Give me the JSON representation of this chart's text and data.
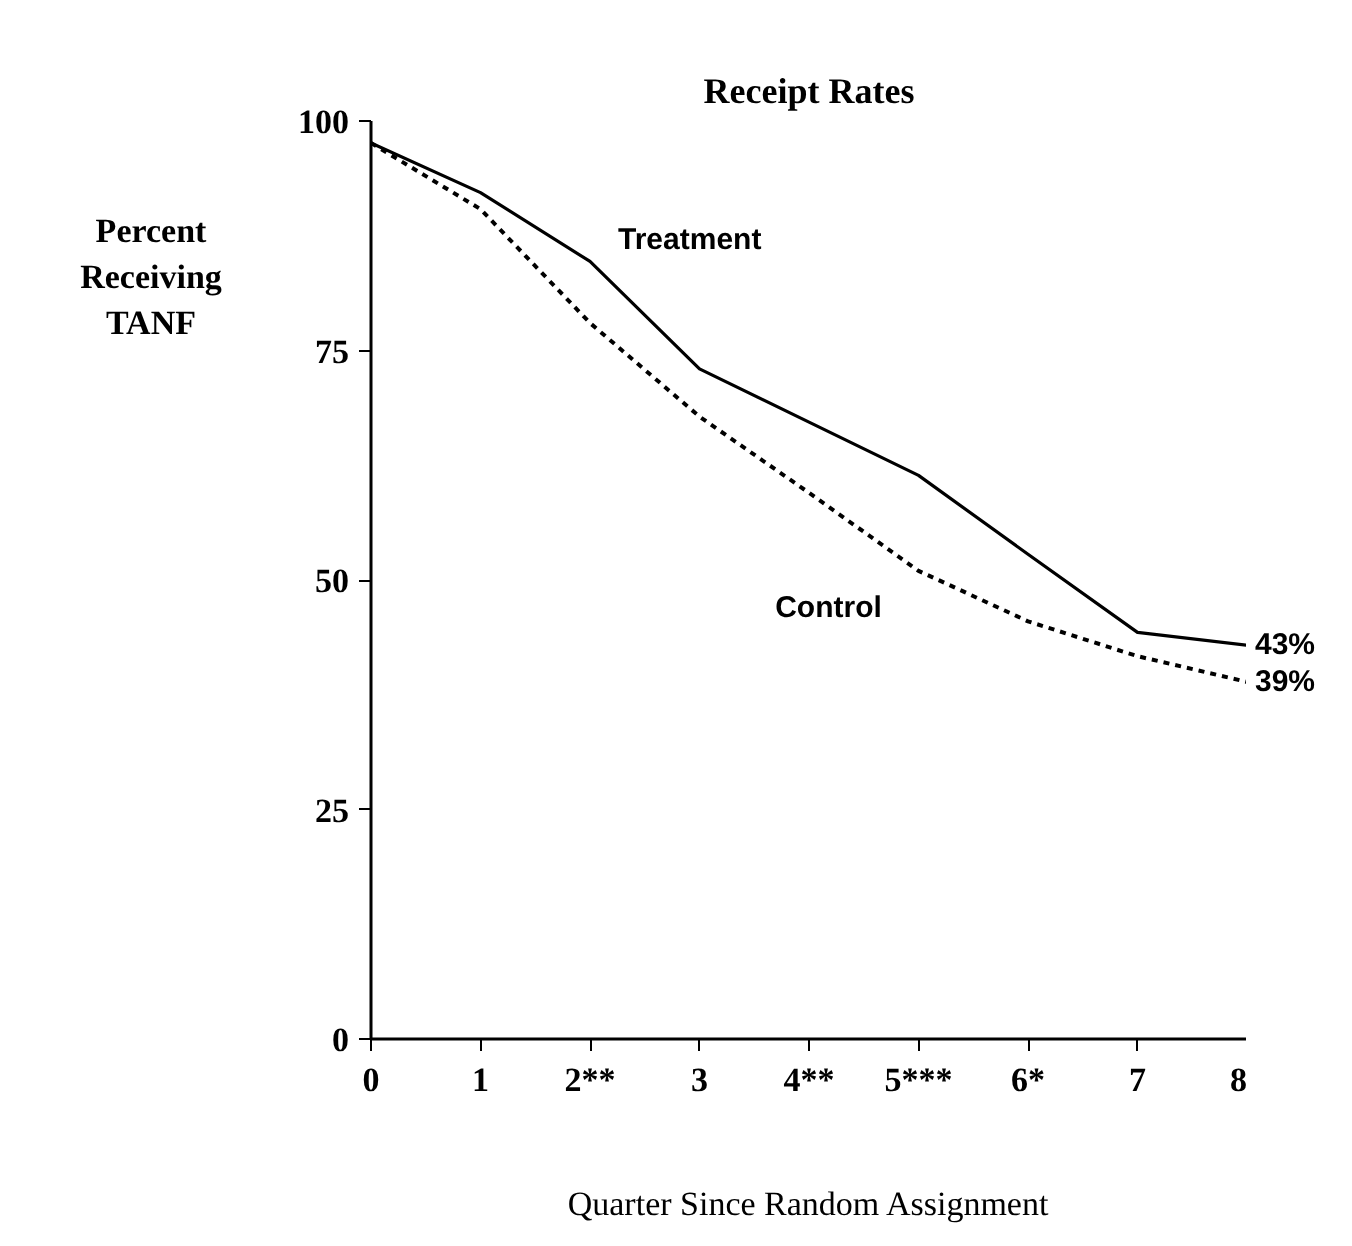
{
  "chart_data": {
    "type": "line",
    "title": "Receipt Rates",
    "xlabel": "Quarter Since Random Assignment",
    "ylabel": "Percent Receiving TANF",
    "x": [
      0,
      1,
      2,
      3,
      4,
      5,
      6,
      7,
      8
    ],
    "xlim": [
      0,
      8
    ],
    "xticks": [
      0,
      1,
      {
        "value": 2,
        "label": "2**"
      },
      3,
      {
        "value": 4,
        "label": "4**"
      },
      {
        "value": 5,
        "label": "5***"
      },
      {
        "value": 6,
        "label": "6*"
      },
      7,
      8
    ],
    "ylim": [
      0,
      100
    ],
    "yticks": [
      0,
      25,
      50,
      75,
      100
    ],
    "grid": false,
    "marker": "none",
    "series": [
      {
        "name": "Treatment",
        "color": "#000000",
        "line_style": "solid",
        "values": [
          97.6,
          92.2,
          84.7,
          73,
          67.2,
          61.4,
          52.8,
          44.3,
          42.9
        ]
      },
      {
        "name": "Control",
        "color": "#000000",
        "line_style": "dotted",
        "values": [
          97.6,
          90.4,
          78,
          67.8,
          59.5,
          51,
          45.5,
          41.7,
          38.9
        ]
      }
    ],
    "annotations": [
      {
        "text": "43%",
        "x": 8,
        "y": 42.9
      },
      {
        "text": "39%",
        "x": 8,
        "y": 38.9
      }
    ]
  }
}
